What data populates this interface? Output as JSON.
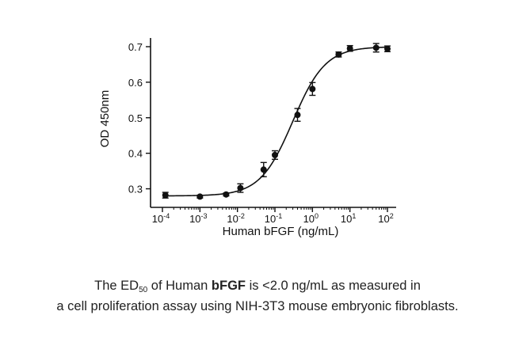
{
  "chart_data": {
    "type": "scatter",
    "xscale": "log",
    "xlabel": "Human bFGF (ng/mL)",
    "ylabel": "OD 450nm",
    "xlim": [
      0.0001,
      100
    ],
    "ylim": [
      0.27,
      0.72
    ],
    "x_ticks": [
      {
        "value": 0.0001,
        "base": "10",
        "exp": "-4"
      },
      {
        "value": 0.001,
        "base": "10",
        "exp": "-3"
      },
      {
        "value": 0.01,
        "base": "10",
        "exp": "-2"
      },
      {
        "value": 0.1,
        "base": "10",
        "exp": "-1"
      },
      {
        "value": 1,
        "base": "10",
        "exp": "0"
      },
      {
        "value": 10,
        "base": "10",
        "exp": "1"
      },
      {
        "value": 100,
        "base": "10",
        "exp": "2"
      }
    ],
    "y_ticks": [
      "0.3",
      "0.4",
      "0.5",
      "0.6",
      "0.7"
    ],
    "points": [
      {
        "x": 0.00012,
        "y": 0.282,
        "err": 0.008
      },
      {
        "x": 0.001,
        "y": 0.278,
        "err": 0.004
      },
      {
        "x": 0.005,
        "y": 0.284,
        "err": 0.004
      },
      {
        "x": 0.012,
        "y": 0.302,
        "err": 0.012
      },
      {
        "x": 0.05,
        "y": 0.354,
        "err": 0.02
      },
      {
        "x": 0.1,
        "y": 0.395,
        "err": 0.012
      },
      {
        "x": 0.4,
        "y": 0.508,
        "err": 0.018
      },
      {
        "x": 1.0,
        "y": 0.581,
        "err": 0.018
      },
      {
        "x": 5.0,
        "y": 0.678,
        "err": 0.007
      },
      {
        "x": 10,
        "y": 0.695,
        "err": 0.008
      },
      {
        "x": 50,
        "y": 0.697,
        "err": 0.012
      },
      {
        "x": 100,
        "y": 0.694,
        "err": 0.008
      }
    ],
    "fit": {
      "bottom": 0.28,
      "top": 0.7,
      "ec50": 0.3,
      "hill": 1.0
    }
  },
  "caption": {
    "pre": "The ED",
    "sub": "50",
    "mid": " of Human ",
    "bold": "bFGF",
    "post": " is <2.0 ng/mL as measured in",
    "line2": "a cell proliferation assay using NIH-3T3 mouse embryonic fibroblasts."
  }
}
